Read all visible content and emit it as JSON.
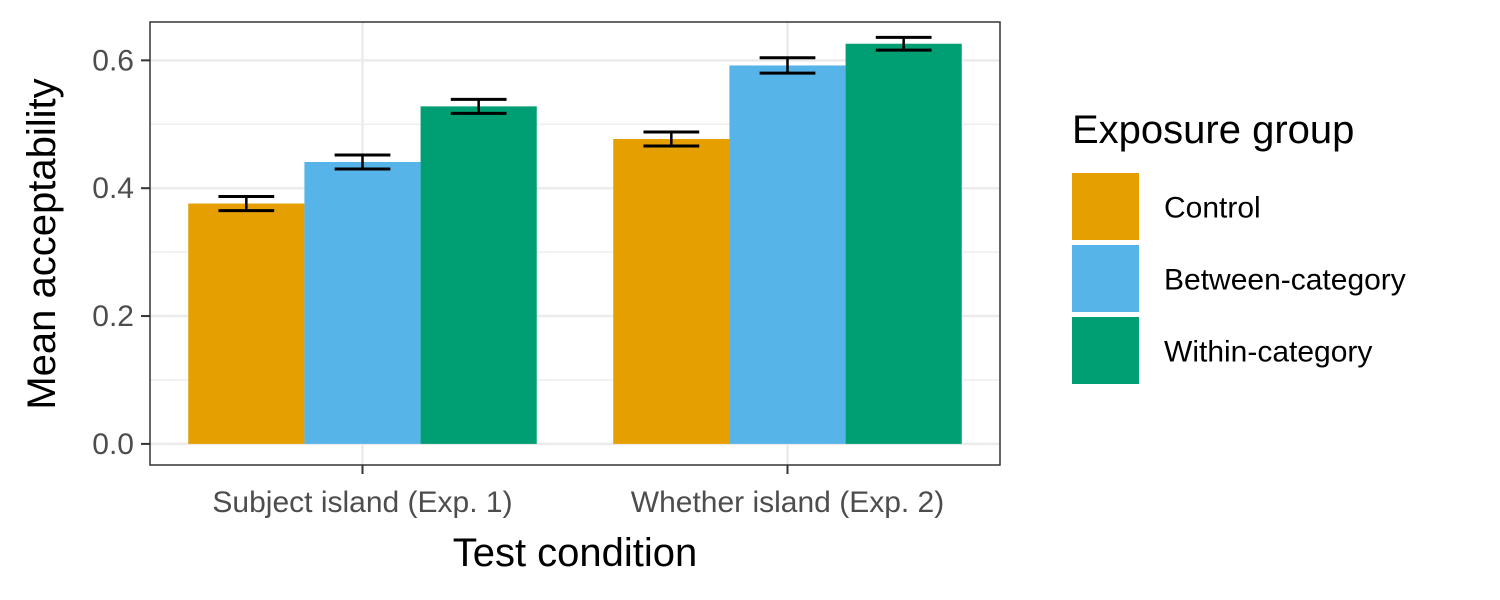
{
  "chart_data": {
    "type": "bar",
    "title": "",
    "xlabel": "Test condition",
    "ylabel": "Mean acceptability",
    "categories": [
      "Subject island (Exp. 1)",
      "Whether island (Exp. 2)"
    ],
    "series": [
      {
        "name": "Control",
        "values": [
          0.376,
          0.477
        ],
        "error": [
          0.011,
          0.011
        ],
        "color": "#E69F00"
      },
      {
        "name": "Between-category",
        "values": [
          0.441,
          0.592
        ],
        "error": [
          0.011,
          0.012
        ],
        "color": "#56B4E9"
      },
      {
        "name": "Within-category",
        "values": [
          0.528,
          0.626
        ],
        "error": [
          0.011,
          0.01
        ],
        "color": "#009E73"
      }
    ],
    "ylim": [
      -0.033,
      0.66
    ],
    "yticks": [
      "0.0",
      "0.2",
      "0.4",
      "0.6"
    ],
    "grid": true,
    "legend": {
      "title": "Exposure group",
      "placement": "right"
    }
  }
}
